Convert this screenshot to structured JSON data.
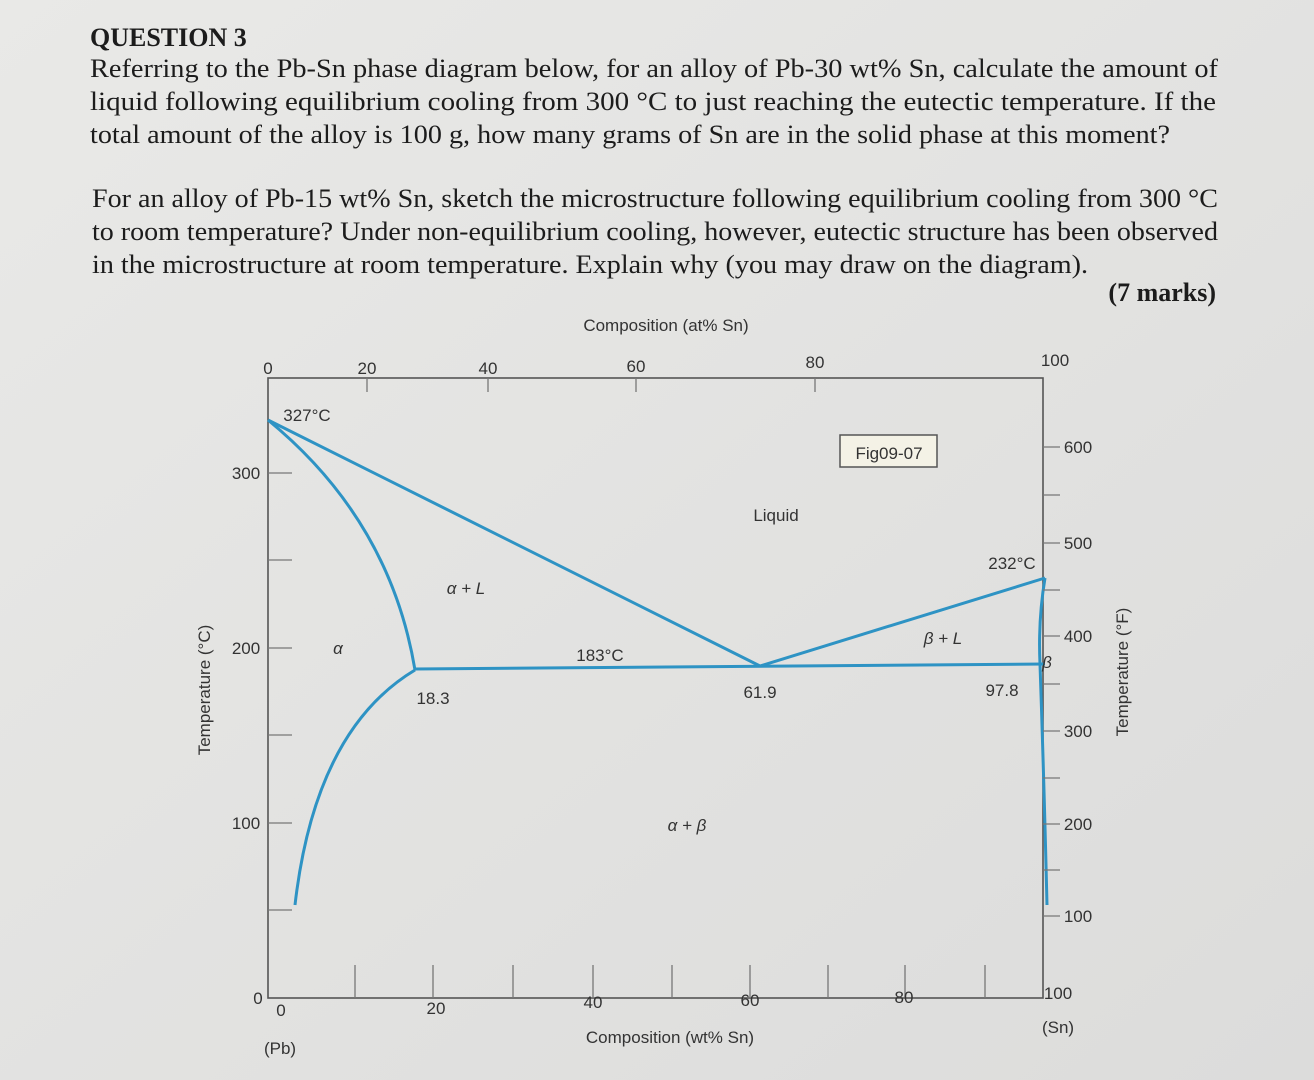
{
  "question": {
    "heading": "QUESTION 3",
    "paragraph1": [
      "Referring to the Pb-Sn phase diagram below, for an alloy of Pb-30 wt% Sn, calculate the amount of",
      "liquid following equilibrium cooling from 300 °C to just reaching the eutectic temperature. If the",
      "total amount of the alloy is 100 g, how many grams of Sn are in the solid phase at this moment?"
    ],
    "paragraph2": [
      "For an alloy of Pb-15 wt% Sn, sketch the microstructure following equilibrium cooling from 300 °C",
      "to room temperature? Under non-equilibrium cooling, however, eutectic structure has been observed",
      "in the microstructure at room temperature. Explain why (you may draw on the diagram)."
    ],
    "marks": "(7 marks)"
  },
  "diagram": {
    "top_axis_title": "Composition (at% Sn)",
    "top_ticks": [
      "0",
      "20",
      "40",
      "60",
      "80",
      "100"
    ],
    "left_axis_title": "Temperature (°C)",
    "left_ticks": [
      "300",
      "200",
      "100",
      "0"
    ],
    "right_axis_title": "Temperature (°F)",
    "right_ticks": [
      "600",
      "500",
      "400",
      "300",
      "200",
      "100"
    ],
    "bottom_axis_title": "Composition (wt% Sn)",
    "bottom_ticks": [
      "0",
      "20",
      "40",
      "60",
      "80",
      "100"
    ],
    "bottom_ends": [
      "(Pb)",
      "(Sn)"
    ],
    "figure_label": "Fig09-07",
    "labels": [
      "327°C",
      "Liquid",
      "232°C",
      "α + L",
      "α",
      "183°C",
      "β + L",
      "β",
      "18.3",
      "61.9",
      "97.8",
      "α + β"
    ]
  }
}
